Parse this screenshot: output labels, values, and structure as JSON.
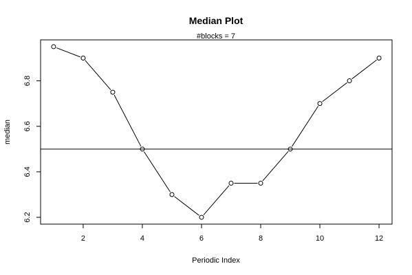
{
  "chart_data": {
    "type": "line",
    "title": "Median Plot",
    "subtitle": "#blocks =  7",
    "xlabel": "Periodic Index",
    "ylabel": "median",
    "x": [
      1,
      2,
      3,
      4,
      5,
      6,
      7,
      8,
      9,
      10,
      11,
      12
    ],
    "series": [
      {
        "values": [
          6.95,
          6.9,
          6.75,
          6.5,
          6.3,
          6.2,
          6.35,
          6.35,
          6.5,
          6.7,
          6.8,
          6.9
        ]
      }
    ],
    "reference_line": {
      "orientation": "horizontal",
      "y": 6.5
    },
    "xticks": [
      2,
      4,
      6,
      8,
      10,
      12
    ],
    "yticks": [
      6.2,
      6.4,
      6.6,
      6.8
    ],
    "xtick_labels": [
      "2",
      "4",
      "6",
      "8",
      "10",
      "12"
    ],
    "ytick_labels": [
      "6.2",
      "6.4",
      "6.6",
      "6.8"
    ],
    "xlim": [
      0.56,
      12.44
    ],
    "ylim": [
      6.17,
      6.98
    ],
    "grid": false,
    "markers": "open-circle",
    "line_color": "#000000"
  }
}
